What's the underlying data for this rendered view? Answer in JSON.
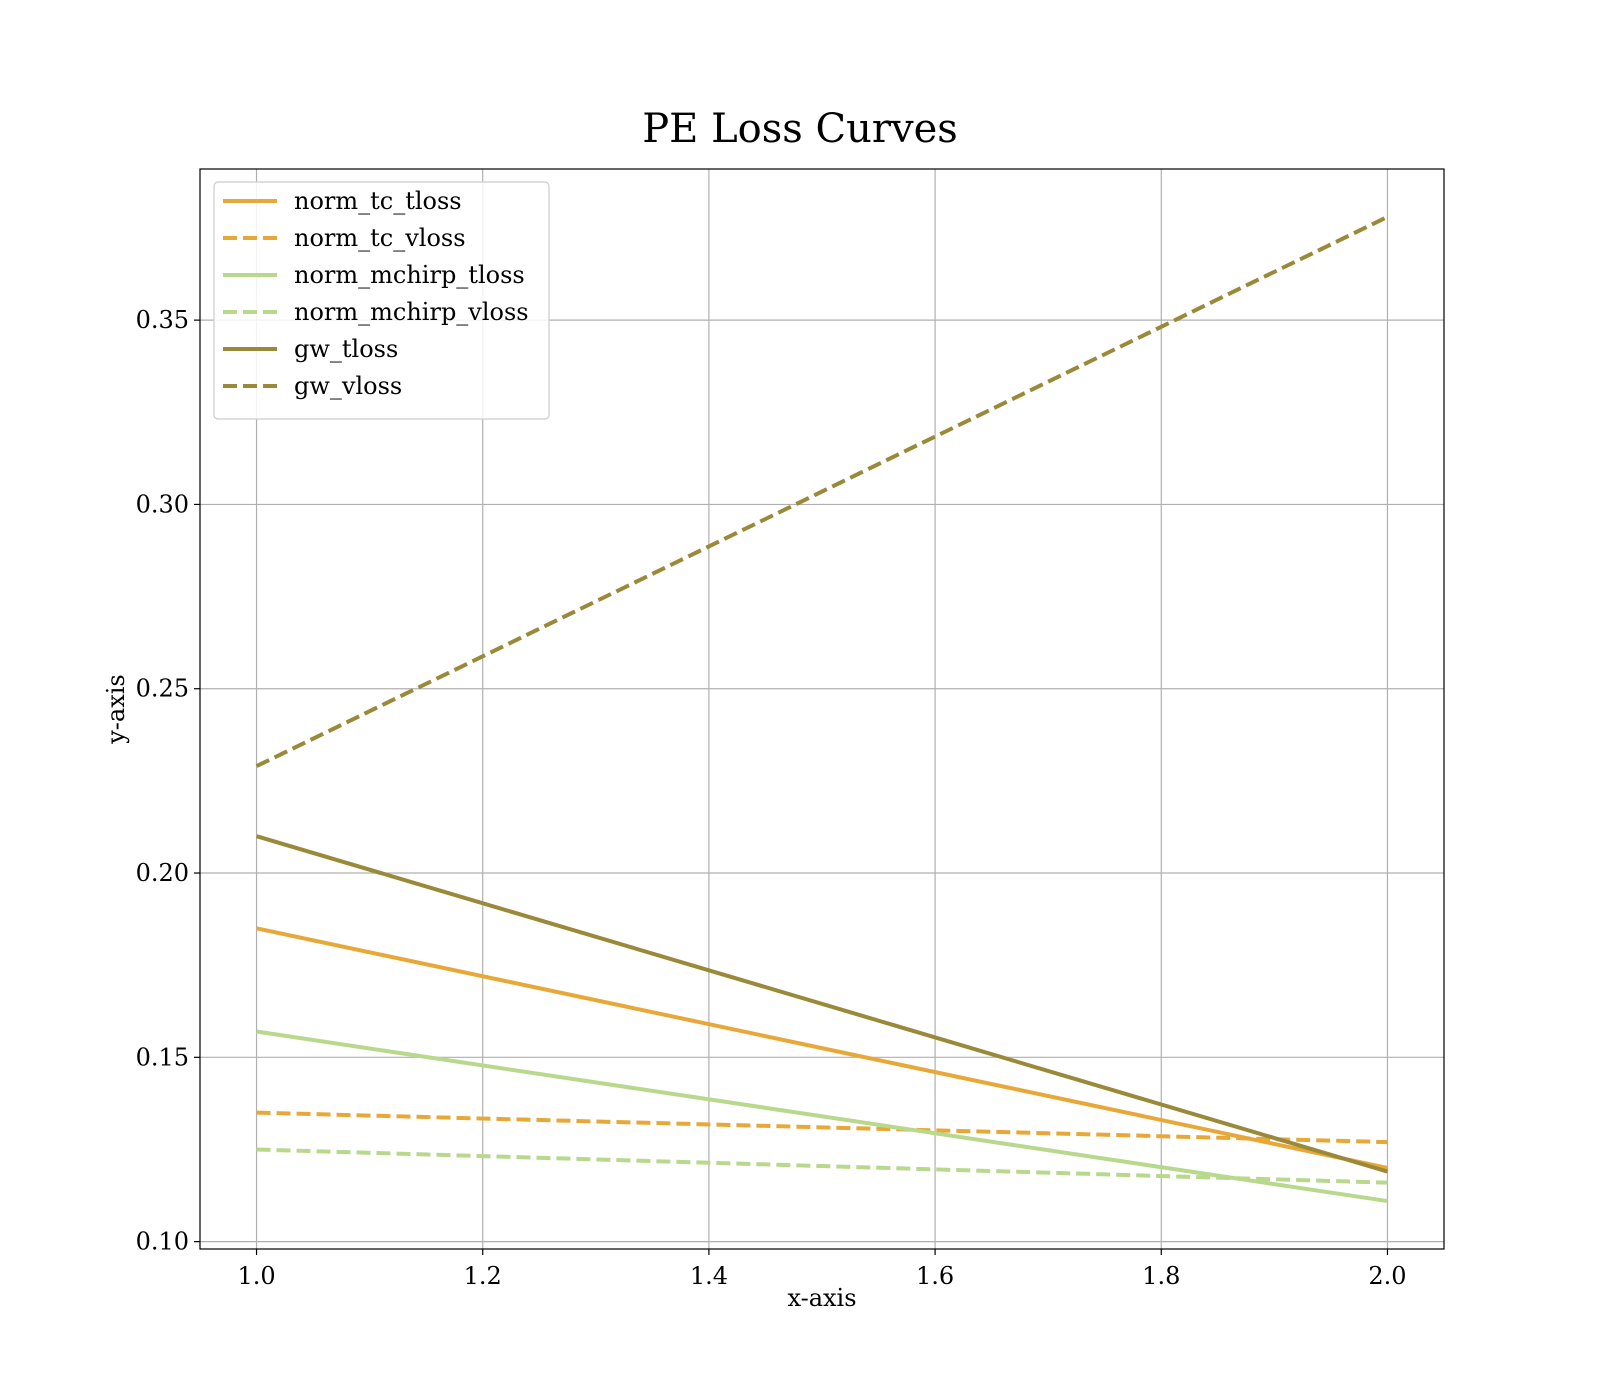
{
  "chart_data": {
    "type": "line",
    "title": "PE Loss Curves",
    "xlabel": "x-axis",
    "ylabel": "y-axis",
    "xlim": [
      0.95,
      2.05
    ],
    "ylim": [
      0.098,
      0.391
    ],
    "xticks": [
      1.0,
      1.2,
      1.4,
      1.6,
      1.8,
      2.0
    ],
    "xtick_labels": [
      "1.0",
      "1.2",
      "1.4",
      "1.6",
      "1.8",
      "2.0"
    ],
    "yticks": [
      0.1,
      0.15,
      0.2,
      0.25,
      0.3,
      0.35
    ],
    "ytick_labels": [
      "0.10",
      "0.15",
      "0.20",
      "0.25",
      "0.30",
      "0.35"
    ],
    "grid": true,
    "legend_position": "top-left",
    "x": [
      1.0,
      2.0
    ],
    "series": [
      {
        "name": "norm_tc_tloss",
        "values": [
          0.185,
          0.12
        ],
        "color": "#e8a838",
        "dash": "solid"
      },
      {
        "name": "norm_tc_vloss",
        "values": [
          0.135,
          0.127
        ],
        "color": "#e8a838",
        "dash": "dashed"
      },
      {
        "name": "norm_mchirp_tloss",
        "values": [
          0.157,
          0.111
        ],
        "color": "#b8d88c",
        "dash": "solid"
      },
      {
        "name": "norm_mchirp_vloss",
        "values": [
          0.125,
          0.116
        ],
        "color": "#b8d88c",
        "dash": "dashed"
      },
      {
        "name": "gw_tloss",
        "values": [
          0.21,
          0.119
        ],
        "color": "#9a8938",
        "dash": "solid"
      },
      {
        "name": "gw_vloss",
        "values": [
          0.229,
          0.378
        ],
        "color": "#9a8938",
        "dash": "dashed"
      }
    ]
  }
}
